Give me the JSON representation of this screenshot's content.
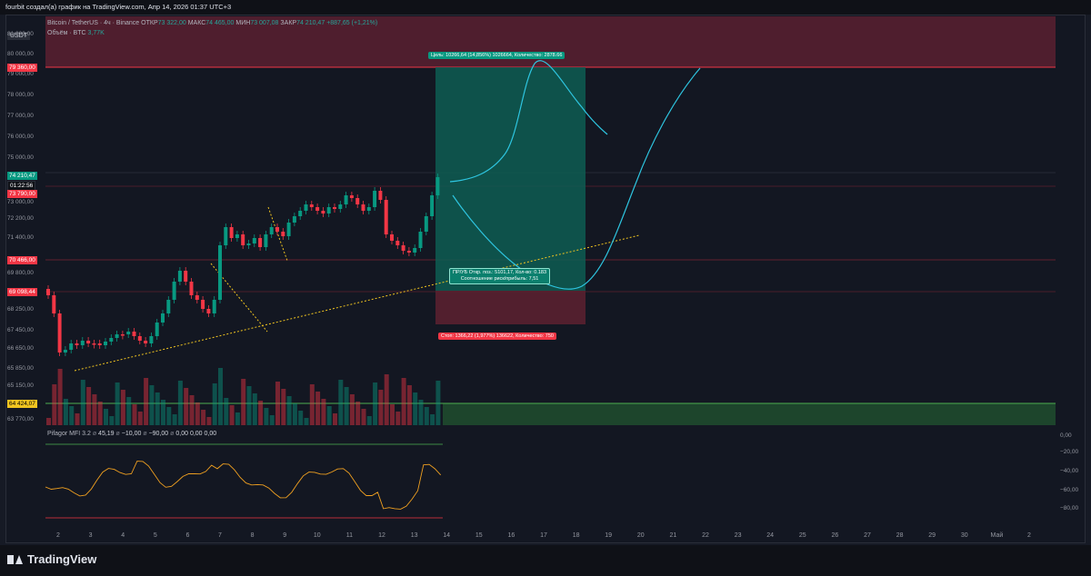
{
  "window": {
    "title": "fourbit создал(а) график на TradingView.com, Апр 14, 2026 01:37 UTC+3"
  },
  "symbol": {
    "currency_badge": "USDT",
    "name": "Bitcoin / TetherUS · 4ч · Binance",
    "open_label": "ОТКР",
    "open_value": "73 322,00",
    "high_label": "МАКС",
    "high_value": "74 465,00",
    "low_label": "МИН",
    "low_value": "73 007,08",
    "close_label": "ЗАКР",
    "close_value": "74 210,47",
    "change": "+887,65 (+1,21%)",
    "volume_label": "Объём · BTC",
    "volume_value": "3,77K"
  },
  "price_axis": {
    "labels": [
      "81 000,00",
      "80 000,00",
      "79 000,00",
      "78 000,00",
      "77 000,00",
      "76 000,00",
      "75 000,00",
      "73 000,00",
      "72 200,00",
      "71 400,00",
      "69 800,00",
      "68 250,00",
      "67 450,00",
      "66 650,00",
      "65 850,00",
      "65 150,00",
      "63 770,00"
    ],
    "tags": {
      "target": "79 360,00",
      "current": "74 210,47",
      "countdown": "01:22:56",
      "entry": "73 790,00",
      "stop_line": "70 466,00",
      "stop": "69 098,44",
      "support": "64 424,07"
    }
  },
  "indicator": {
    "name": "Pifagor MFI 3.2",
    "params": [
      "45,19",
      "−10,00",
      "−90,00",
      "0,00",
      "0,00",
      "0,00"
    ],
    "axis_labels": [
      "0,00",
      "−20,00",
      "−40,00",
      "−60,00",
      "−80,00"
    ]
  },
  "time_axis": {
    "labels": [
      "2",
      "3",
      "4",
      "5",
      "6",
      "7",
      "8",
      "9",
      "10",
      "11",
      "12",
      "13",
      "14",
      "15",
      "16",
      "17",
      "18",
      "19",
      "20",
      "21",
      "22",
      "23",
      "24",
      "25",
      "26",
      "27",
      "28",
      "29",
      "30",
      "Май",
      "2"
    ]
  },
  "position": {
    "target_label": "Цель: 10266,64 (14,856%) 1026664, Количество: 2878.66",
    "mid_line1": "ПР/УБ Откр. поз.: 5101,17, Кол-во: 0.183",
    "mid_line2": "Соотношение риск/прибыль: 7,51",
    "stop_label": "Стоп: 1366,22 (1,977%) 136622, Количество: 750"
  },
  "brand": {
    "name": "TradingView"
  },
  "colors": {
    "up": "#089981",
    "down": "#f23645",
    "path": "#2ec5e0",
    "trend": "#f0c420",
    "mfi": "#f0a020"
  }
}
